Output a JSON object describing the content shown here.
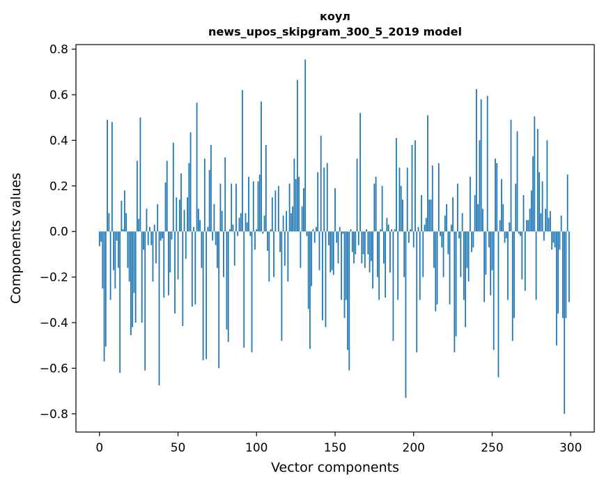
{
  "chart_data": {
    "type": "bar",
    "title": [
      "коул",
      "news_upos_skipgram_300_5_2019 model"
    ],
    "xlabel": "Vector components",
    "ylabel": "Components values",
    "xlim": [
      -15,
      315
    ],
    "ylim": [
      -0.88,
      0.82
    ],
    "xticks": [
      0,
      50,
      100,
      150,
      200,
      250,
      300
    ],
    "xtick_labels": [
      "0",
      "50",
      "100",
      "150",
      "200",
      "250",
      "300"
    ],
    "yticks": [
      -0.8,
      -0.6,
      -0.4,
      -0.2,
      0.0,
      0.2,
      0.4,
      0.6,
      0.8
    ],
    "ytick_labels": [
      "−0.8",
      "−0.6",
      "−0.4",
      "−0.2",
      "0.0",
      "0.2",
      "0.4",
      "0.6",
      "0.8"
    ],
    "bar_color": "#1f77b4",
    "grid": false,
    "values": [
      -0.065,
      -0.045,
      -0.25,
      -0.57,
      -0.505,
      0.49,
      0.08,
      -0.3,
      0.48,
      -0.17,
      -0.25,
      -0.04,
      -0.16,
      -0.62,
      0.135,
      0.01,
      0.18,
      0.08,
      -0.16,
      -0.22,
      -0.455,
      -0.42,
      -0.27,
      -0.4,
      0.31,
      0.055,
      0.5,
      -0.4,
      -0.08,
      -0.61,
      0.1,
      -0.06,
      0.02,
      -0.06,
      -0.22,
      0.03,
      -0.14,
      0.12,
      -0.675,
      -0.04,
      -0.03,
      -0.29,
      0.215,
      0.31,
      -0.28,
      -0.18,
      -0.035,
      0.39,
      -0.36,
      0.15,
      -0.21,
      0.14,
      0.255,
      -0.415,
      0.095,
      -0.12,
      0.15,
      0.3,
      0.435,
      -0.33,
      0.02,
      -0.32,
      0.565,
      0.1,
      0.05,
      -0.16,
      -0.565,
      0.32,
      -0.56,
      0.02,
      0.27,
      0.38,
      -0.04,
      0.12,
      -0.06,
      -0.16,
      -0.6,
      0.21,
      0.09,
      -0.2,
      0.325,
      -0.43,
      -0.485,
      0.01,
      0.21,
      0.03,
      -0.15,
      0.21,
      -0.02,
      0.06,
      0.08,
      0.62,
      -0.51,
      0.08,
      0.04,
      0.24,
      -0.02,
      -0.53,
      0.22,
      -0.08,
      0.01,
      0.22,
      0.25,
      0.57,
      -0.01,
      0.07,
      0.38,
      -0.085,
      -0.22,
      0.01,
      0.15,
      -0.2,
      0.18,
      0.0,
      0.2,
      -0.09,
      -0.48,
      0.07,
      -0.15,
      0.09,
      -0.22,
      0.21,
      0.08,
      0.11,
      0.32,
      0.23,
      0.665,
      0.24,
      -0.16,
      0.11,
      0.19,
      0.755,
      -0.02,
      -0.34,
      -0.515,
      -0.24,
      0.01,
      -0.05,
      0.02,
      0.26,
      -0.17,
      0.42,
      -0.39,
      0.28,
      -0.42,
      0.3,
      -0.06,
      -0.18,
      -0.17,
      -0.19,
      0.19,
      -0.05,
      -0.14,
      0.02,
      -0.3,
      -0.01,
      -0.38,
      -0.3,
      -0.52,
      -0.61,
      0.01,
      -0.09,
      -0.14,
      -0.1,
      0.32,
      -0.06,
      0.52,
      -0.14,
      -0.1,
      -0.16,
      0.01,
      -0.1,
      -0.18,
      -0.13,
      -0.25,
      0.21,
      0.24,
      -0.2,
      -0.3,
      0.01,
      0.2,
      -0.14,
      -0.29,
      0.06,
      0.03,
      -0.18,
      0.01,
      -0.48,
      0.01,
      0.41,
      -0.3,
      0.28,
      0.2,
      0.14,
      -0.2,
      -0.73,
      0.28,
      -0.05,
      0.01,
      0.38,
      -0.07,
      0.4,
      -0.53,
      0.02,
      -0.3,
      0.16,
      -0.2,
      0.03,
      0.06,
      0.51,
      0.14,
      0.14,
      0.29,
      -0.16,
      -0.35,
      -0.32,
      0.3,
      -0.02,
      -0.07,
      -0.2,
      0.07,
      0.12,
      -0.1,
      -0.32,
      0.03,
      0.15,
      -0.53,
      -0.46,
      0.21,
      -0.03,
      -0.2,
      0.08,
      -0.3,
      -0.42,
      -0.16,
      -0.22,
      0.24,
      -0.09,
      -0.07,
      0.16,
      0.625,
      0.12,
      0.4,
      0.58,
      0.1,
      -0.31,
      -0.19,
      0.595,
      -0.07,
      -0.28,
      -0.17,
      -0.52,
      0.32,
      0.3,
      -0.64,
      0.05,
      0.23,
      0.12,
      -0.05,
      -0.03,
      -0.3,
      0.04,
      0.49,
      -0.48,
      -0.38,
      0.21,
      0.44,
      -0.01,
      -0.02,
      -0.21,
      0.16,
      -0.26,
      0.05,
      0.05,
      0.1,
      0.18,
      0.33,
      0.505,
      -0.3,
      0.45,
      0.26,
      0.08,
      0.22,
      -0.04,
      0.1,
      0.4,
      0.06,
      0.09,
      -0.08,
      -0.05,
      -0.07,
      -0.5,
      -0.36,
      -0.08,
      0.07,
      -0.38,
      -0.8,
      -0.38,
      0.25,
      -0.31
    ]
  }
}
